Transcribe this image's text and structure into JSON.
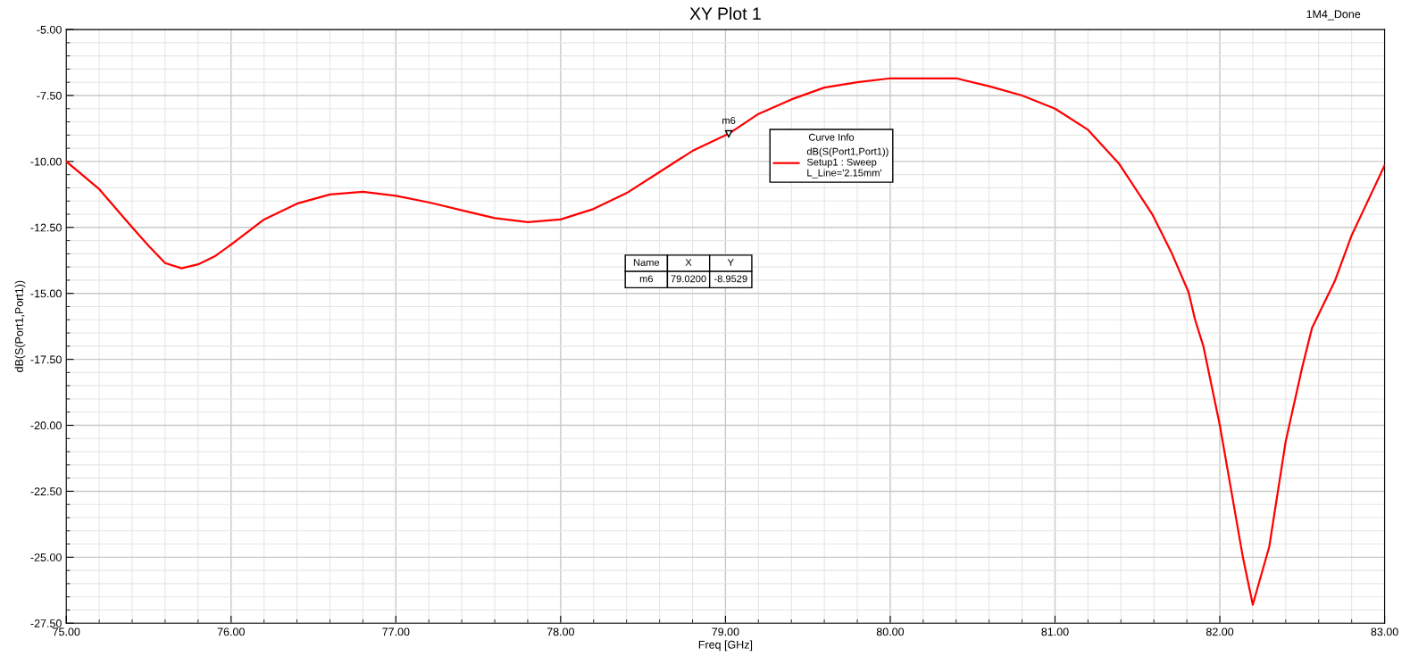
{
  "chart_data": {
    "type": "line",
    "title": "XY Plot 1",
    "xlabel": "Freq [GHz]",
    "ylabel": "dB(S(Port1,Port1))",
    "legend_title": "Curve Info",
    "xlim": [
      75,
      83
    ],
    "ylim": [
      -27.5,
      -5
    ],
    "xticks": [
      {
        "value": 75,
        "label": "75.00"
      },
      {
        "value": 76,
        "label": "76.00"
      },
      {
        "value": 77,
        "label": "77.00"
      },
      {
        "value": 78,
        "label": "78.00"
      },
      {
        "value": 79,
        "label": "79.00"
      },
      {
        "value": 80,
        "label": "80.00"
      },
      {
        "value": 81,
        "label": "81.00"
      },
      {
        "value": 82,
        "label": "82.00"
      },
      {
        "value": 83,
        "label": "83.00"
      }
    ],
    "yticks": [
      {
        "value": -27.5,
        "label": "-27.50"
      },
      {
        "value": -25,
        "label": "-25.00"
      },
      {
        "value": -22.5,
        "label": "-22.50"
      },
      {
        "value": -20,
        "label": "-20.00"
      },
      {
        "value": -17.5,
        "label": "-17.50"
      },
      {
        "value": -15,
        "label": "-15.00"
      },
      {
        "value": -12.5,
        "label": "-12.50"
      },
      {
        "value": -10,
        "label": "-10.00"
      },
      {
        "value": -7.5,
        "label": "-7.50"
      },
      {
        "value": -5,
        "label": "-5.00"
      }
    ],
    "grid": true,
    "legend": "top",
    "marker": "none",
    "line_style": "solid",
    "series": [
      {
        "name": "dB(S(Port1,Port1))",
        "color": "#ff0000",
        "x": [
          75.0,
          75.2,
          75.4,
          75.5,
          75.6,
          75.7,
          75.8,
          75.9,
          76.0,
          76.2,
          76.4,
          76.6,
          76.8,
          77.0,
          77.2,
          77.4,
          77.6,
          77.8,
          78.0,
          78.2,
          78.4,
          78.6,
          78.8,
          79.02,
          79.2,
          79.4,
          79.6,
          79.8,
          80.0,
          80.2,
          80.4,
          80.6,
          80.8,
          81.0,
          81.2,
          81.39,
          81.59,
          81.71,
          81.81,
          81.85,
          81.9,
          82.0,
          82.07,
          82.14,
          82.2,
          82.3,
          82.4,
          82.5,
          82.56,
          82.7,
          82.8,
          83.0
        ],
        "values": [
          -10.0,
          -11.05,
          -12.5,
          -13.2,
          -13.85,
          -14.05,
          -13.9,
          -13.6,
          -13.15,
          -12.2,
          -11.6,
          -11.25,
          -11.15,
          -11.3,
          -11.55,
          -11.85,
          -12.15,
          -12.3,
          -12.2,
          -11.8,
          -11.2,
          -10.4,
          -9.6,
          -8.95,
          -8.2,
          -7.65,
          -7.2,
          -7.0,
          -6.85,
          -6.85,
          -6.85,
          -7.15,
          -7.5,
          -8.0,
          -8.8,
          -10.1,
          -12.0,
          -13.5,
          -14.95,
          -16.0,
          -17.0,
          -20.0,
          -22.5,
          -25.0,
          -26.8,
          -24.6,
          -20.6,
          -17.8,
          -16.3,
          -14.5,
          -12.8,
          -10.15
        ]
      }
    ],
    "annotations": [
      {
        "text": "m6",
        "x": 79.02,
        "y": -8.9529
      },
      "Setup1 : Sweep",
      "L_Line='2.15mm'",
      "Name",
      "X",
      "Y",
      "m6",
      "79.0200",
      "-8.9529",
      "1M4_Done"
    ]
  }
}
